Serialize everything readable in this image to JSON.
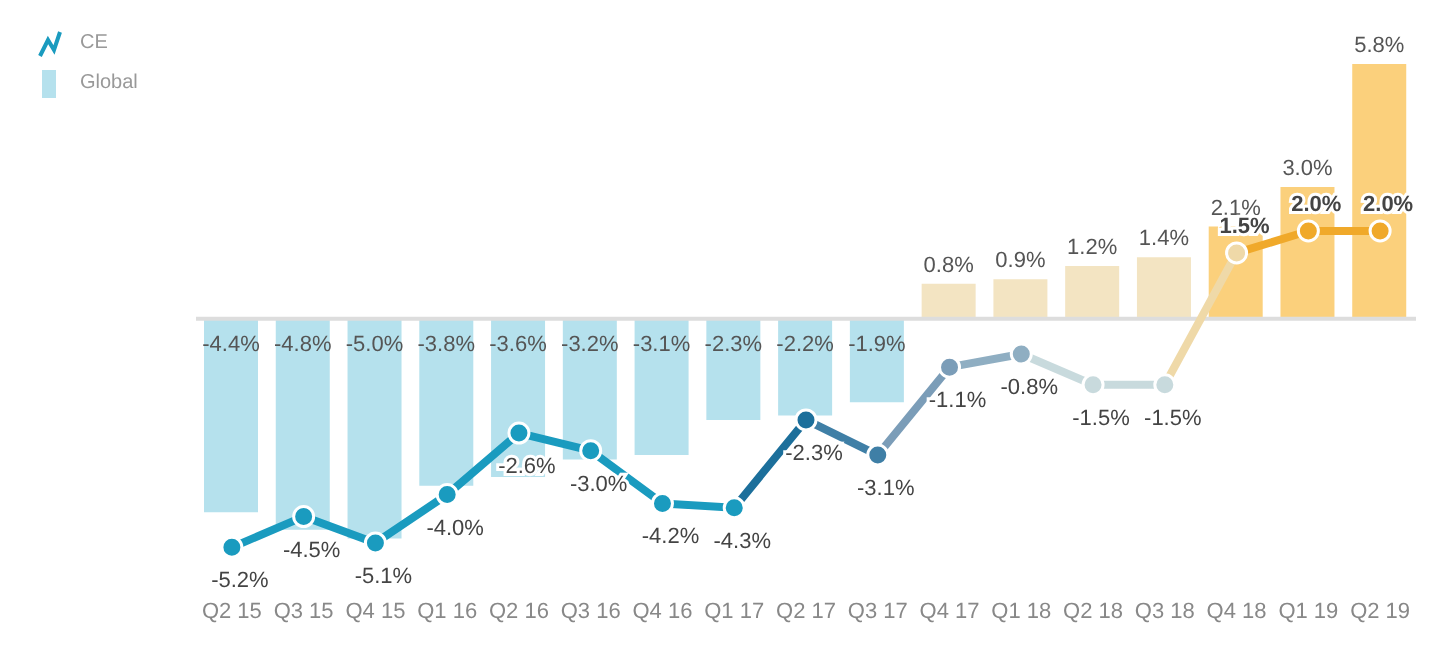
{
  "chart_data": {
    "type": "bar",
    "categories": [
      "Q2 15",
      "Q3 15",
      "Q4 15",
      "Q1 16",
      "Q2 16",
      "Q3 16",
      "Q4 16",
      "Q1 17",
      "Q2 17",
      "Q3 17",
      "Q4 17",
      "Q1 18",
      "Q2 18",
      "Q3 18",
      "Q4 18",
      "Q1 19",
      "Q2 19"
    ],
    "series": [
      {
        "name": "CE",
        "type": "line",
        "marker": "circle",
        "values": [
          -5.2,
          -4.5,
          -5.1,
          -4.0,
          -2.6,
          -3.0,
          -4.2,
          -4.3,
          -2.3,
          -3.1,
          -1.1,
          -0.8,
          -1.5,
          -1.5,
          1.5,
          2.0,
          2.0
        ],
        "value_labels": [
          "-5.2%",
          "-4.5%",
          "-5.1%",
          "-4.0%",
          "-2.6%",
          "-3.0%",
          "-4.2%",
          "-4.3%",
          "-2.3%",
          "-3.1%",
          "-1.1%",
          "-0.8%",
          "-1.5%",
          "-1.5%",
          "1.5%",
          "2.0%",
          "2.0%"
        ],
        "colors": [
          "#1a9bbf",
          "#1a9bbf",
          "#1a9bbf",
          "#1a9bbf",
          "#1a9bbf",
          "#1a9bbf",
          "#1a9bbf",
          "#1a9bbf",
          "#1c6f9b",
          "#3f7fa6",
          "#7b9db8",
          "#8faec2",
          "#c8dadd",
          "#c8dadd",
          "#efd9a8",
          "#f0a92a",
          "#f0a92a"
        ]
      },
      {
        "name": "Global",
        "values": [
          -4.4,
          -4.8,
          -5.0,
          -3.8,
          -3.6,
          -3.2,
          -3.1,
          -2.3,
          -2.2,
          -1.9,
          0.8,
          0.9,
          1.2,
          1.4,
          2.1,
          3.0,
          5.8
        ],
        "value_labels": [
          "-4.4%",
          "-4.8%",
          "-5.0%",
          "-3.8%",
          "-3.6%",
          "-3.2%",
          "-3.1%",
          "-2.3%",
          "-2.2%",
          "-1.9%",
          "0.8%",
          "0.9%",
          "1.2%",
          "1.4%",
          "2.1%",
          "3.0%",
          "5.8%"
        ],
        "colors": [
          "#b5e1ed",
          "#b5e1ed",
          "#b5e1ed",
          "#b5e1ed",
          "#b5e1ed",
          "#b5e1ed",
          "#b5e1ed",
          "#b5e1ed",
          "#b5e1ed",
          "#b5e1ed",
          "#f3e4c2",
          "#f3e4c2",
          "#f3e4c2",
          "#f3e4c2",
          "#fbd07c",
          "#fbd07c",
          "#fbd07c"
        ]
      }
    ],
    "legend": "top left"
  }
}
